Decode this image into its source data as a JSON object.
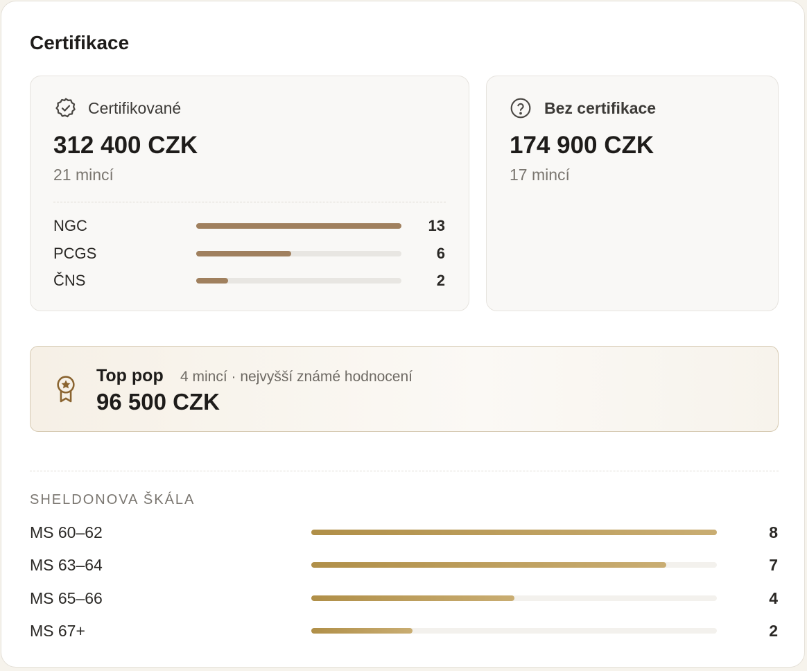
{
  "title": "Certifikace",
  "certified": {
    "label": "Certifikované",
    "amount": "312 400 CZK",
    "count": "21 mincí",
    "breakdown": [
      {
        "name": "NGC",
        "value": 13
      },
      {
        "name": "PCGS",
        "value": 6
      },
      {
        "name": "ČNS",
        "value": 2
      }
    ]
  },
  "uncertified": {
    "label": "Bez certifikace",
    "amount": "174 900 CZK",
    "count": "17 mincí"
  },
  "top_pop": {
    "label": "Top pop",
    "note": "4 mincí · nejvyšší známé hodnocení",
    "amount": "96 500 CZK"
  },
  "sheldon": {
    "heading": "SHELDONOVA ŠKÁLA",
    "rows": [
      {
        "name": "MS 60–62",
        "value": 8
      },
      {
        "name": "MS 63–64",
        "value": 7
      },
      {
        "name": "MS 65–66",
        "value": 4
      },
      {
        "name": "MS 67+",
        "value": 2
      }
    ]
  }
}
